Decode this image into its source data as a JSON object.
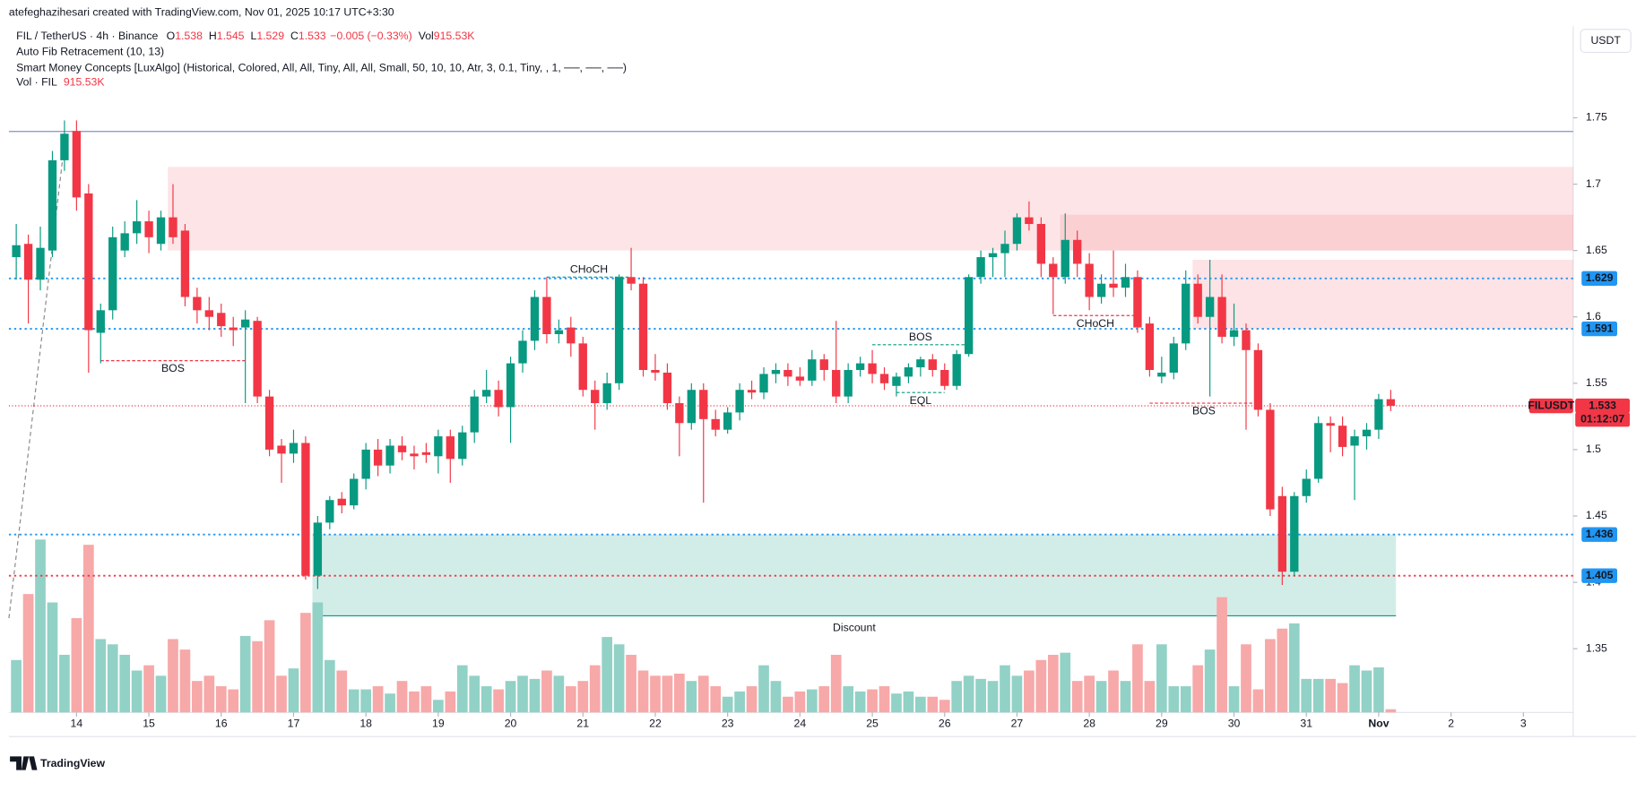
{
  "header": {
    "credit": "atefeghazihesari created with TradingView.com, Nov 01, 2025 10:17 UTC+3:30",
    "symbol": "FIL / TetherUS · 4h · Binance",
    "ohlc_labels": [
      "O",
      "H",
      "L",
      "C"
    ],
    "change": "−0.005 (−0.33%)",
    "vol_label": "Vol",
    "indicators": [
      "Auto Fib Retracement (10, 13)",
      "Smart Money Concepts [LuxAlgo] (Historical, Colored, All, All, Tiny, All, All, Small, 50, 10, 10, Atr, 3, 0.1, Tiny, , 1, ──, ──, ──)"
    ],
    "vol_pane": "Vol · FIL",
    "currency": "USDT",
    "brand": "TradingView"
  },
  "chart_data": {
    "type": "candlestick",
    "ylim": [
      1.302,
      1.819
    ],
    "yticks": [
      1.35,
      1.4,
      1.45,
      1.5,
      1.55,
      1.6,
      1.65,
      1.7,
      1.75
    ],
    "grid": false,
    "up_color": "#089981",
    "down_color": "#f23645",
    "vol_up_color": "#92d1c6",
    "vol_down_color": "#f7a8a8",
    "xticks": [
      {
        "value": 5,
        "label": "14"
      },
      {
        "value": 11,
        "label": "15"
      },
      {
        "value": 17,
        "label": "16"
      },
      {
        "value": 23,
        "label": "17"
      },
      {
        "value": 29,
        "label": "18"
      },
      {
        "value": 35,
        "label": "19"
      },
      {
        "value": 41,
        "label": "20"
      },
      {
        "value": 47,
        "label": "21"
      },
      {
        "value": 53,
        "label": "22"
      },
      {
        "value": 59,
        "label": "23"
      },
      {
        "value": 65,
        "label": "24"
      },
      {
        "value": 71,
        "label": "25"
      },
      {
        "value": 77,
        "label": "26"
      },
      {
        "value": 83,
        "label": "27"
      },
      {
        "value": 89,
        "label": "28"
      },
      {
        "value": 95,
        "label": "29"
      },
      {
        "value": 101,
        "label": "30"
      },
      {
        "value": 107,
        "label": "31"
      },
      {
        "value": 113,
        "label": "Nov"
      },
      {
        "value": 119,
        "label": "2"
      },
      {
        "value": 125,
        "label": "3"
      }
    ],
    "candles": [
      [
        1.645,
        1.67,
        1.628,
        1.654
      ],
      [
        1.655,
        1.662,
        1.595,
        1.628
      ],
      [
        1.628,
        1.668,
        1.62,
        1.652
      ],
      [
        1.65,
        1.725,
        1.645,
        1.718
      ],
      [
        1.718,
        1.748,
        1.71,
        1.738
      ],
      [
        1.74,
        1.748,
        1.68,
        1.69
      ],
      [
        1.693,
        1.7,
        1.558,
        1.59
      ],
      [
        1.588,
        1.61,
        1.565,
        1.605
      ],
      [
        1.605,
        1.668,
        1.598,
        1.66
      ],
      [
        1.65,
        1.672,
        1.645,
        1.663
      ],
      [
        1.663,
        1.688,
        1.655,
        1.672
      ],
      [
        1.672,
        1.68,
        1.648,
        1.66
      ],
      [
        1.655,
        1.68,
        1.65,
        1.675
      ],
      [
        1.675,
        1.7,
        1.655,
        1.66
      ],
      [
        1.665,
        1.67,
        1.608,
        1.615
      ],
      [
        1.615,
        1.622,
        1.595,
        1.605
      ],
      [
        1.605,
        1.615,
        1.59,
        1.6
      ],
      [
        1.603,
        1.61,
        1.585,
        1.593
      ],
      [
        1.592,
        1.6,
        1.578,
        1.59
      ],
      [
        1.592,
        1.605,
        1.535,
        1.598
      ],
      [
        1.597,
        1.6,
        1.535,
        1.54
      ],
      [
        1.54,
        1.545,
        1.495,
        1.5
      ],
      [
        1.503,
        1.508,
        1.475,
        1.497
      ],
      [
        1.497,
        1.515,
        1.49,
        1.505
      ],
      [
        1.505,
        1.51,
        1.402,
        1.405
      ],
      [
        1.405,
        1.45,
        1.395,
        1.445
      ],
      [
        1.445,
        1.465,
        1.44,
        1.462
      ],
      [
        1.463,
        1.468,
        1.452,
        1.458
      ],
      [
        1.458,
        1.482,
        1.455,
        1.478
      ],
      [
        1.478,
        1.505,
        1.47,
        1.5
      ],
      [
        1.5,
        1.508,
        1.48,
        1.488
      ],
      [
        1.488,
        1.508,
        1.482,
        1.503
      ],
      [
        1.503,
        1.51,
        1.492,
        1.498
      ],
      [
        1.497,
        1.503,
        1.485,
        1.495
      ],
      [
        1.498,
        1.505,
        1.49,
        1.496
      ],
      [
        1.495,
        1.515,
        1.482,
        1.51
      ],
      [
        1.51,
        1.515,
        1.475,
        1.493
      ],
      [
        1.493,
        1.518,
        1.488,
        1.513
      ],
      [
        1.513,
        1.545,
        1.505,
        1.54
      ],
      [
        1.54,
        1.56,
        1.535,
        1.545
      ],
      [
        1.545,
        1.552,
        1.525,
        1.532
      ],
      [
        1.532,
        1.57,
        1.505,
        1.565
      ],
      [
        1.565,
        1.59,
        1.558,
        1.582
      ],
      [
        1.582,
        1.62,
        1.575,
        1.615
      ],
      [
        1.615,
        1.63,
        1.58,
        1.587
      ],
      [
        1.587,
        1.598,
        1.58,
        1.59
      ],
      [
        1.592,
        1.6,
        1.57,
        1.58
      ],
      [
        1.58,
        1.585,
        1.54,
        1.545
      ],
      [
        1.545,
        1.552,
        1.515,
        1.535
      ],
      [
        1.535,
        1.558,
        1.53,
        1.55
      ],
      [
        1.55,
        1.632,
        1.545,
        1.63
      ],
      [
        1.63,
        1.652,
        1.62,
        1.625
      ],
      [
        1.625,
        1.63,
        1.555,
        1.56
      ],
      [
        1.56,
        1.572,
        1.552,
        1.558
      ],
      [
        1.558,
        1.565,
        1.53,
        1.535
      ],
      [
        1.535,
        1.54,
        1.495,
        1.52
      ],
      [
        1.52,
        1.55,
        1.515,
        1.545
      ],
      [
        1.545,
        1.55,
        1.46,
        1.523
      ],
      [
        1.523,
        1.53,
        1.51,
        1.515
      ],
      [
        1.515,
        1.532,
        1.512,
        1.528
      ],
      [
        1.528,
        1.55,
        1.522,
        1.545
      ],
      [
        1.545,
        1.552,
        1.538,
        1.543
      ],
      [
        1.543,
        1.562,
        1.538,
        1.557
      ],
      [
        1.557,
        1.565,
        1.55,
        1.56
      ],
      [
        1.56,
        1.565,
        1.548,
        1.555
      ],
      [
        1.555,
        1.562,
        1.548,
        1.552
      ],
      [
        1.552,
        1.575,
        1.548,
        1.568
      ],
      [
        1.568,
        1.572,
        1.552,
        1.56
      ],
      [
        1.56,
        1.597,
        1.535,
        1.54
      ],
      [
        1.54,
        1.565,
        1.535,
        1.56
      ],
      [
        1.56,
        1.57,
        1.555,
        1.565
      ],
      [
        1.565,
        1.575,
        1.55,
        1.557
      ],
      [
        1.557,
        1.562,
        1.545,
        1.55
      ],
      [
        1.548,
        1.558,
        1.54,
        1.555
      ],
      [
        1.555,
        1.565,
        1.55,
        1.562
      ],
      [
        1.562,
        1.57,
        1.555,
        1.568
      ],
      [
        1.568,
        1.572,
        1.555,
        1.56
      ],
      [
        1.56,
        1.565,
        1.545,
        1.548
      ],
      [
        1.548,
        1.575,
        1.545,
        1.572
      ],
      [
        1.572,
        1.632,
        1.57,
        1.63
      ],
      [
        1.63,
        1.65,
        1.625,
        1.645
      ],
      [
        1.645,
        1.652,
        1.63,
        1.648
      ],
      [
        1.648,
        1.665,
        1.63,
        1.655
      ],
      [
        1.655,
        1.678,
        1.65,
        1.675
      ],
      [
        1.675,
        1.687,
        1.665,
        1.67
      ],
      [
        1.67,
        1.675,
        1.63,
        1.64
      ],
      [
        1.64,
        1.645,
        1.602,
        1.63
      ],
      [
        1.63,
        1.678,
        1.625,
        1.658
      ],
      [
        1.658,
        1.665,
        1.63,
        1.64
      ],
      [
        1.64,
        1.648,
        1.605,
        1.615
      ],
      [
        1.615,
        1.632,
        1.61,
        1.625
      ],
      [
        1.625,
        1.65,
        1.615,
        1.622
      ],
      [
        1.622,
        1.64,
        1.615,
        1.63
      ],
      [
        1.63,
        1.635,
        1.588,
        1.592
      ],
      [
        1.595,
        1.6,
        1.555,
        1.56
      ],
      [
        1.555,
        1.57,
        1.55,
        1.558
      ],
      [
        1.558,
        1.585,
        1.553,
        1.58
      ],
      [
        1.58,
        1.635,
        1.575,
        1.625
      ],
      [
        1.625,
        1.632,
        1.595,
        1.6
      ],
      [
        1.6,
        1.643,
        1.54,
        1.615
      ],
      [
        1.615,
        1.632,
        1.58,
        1.585
      ],
      [
        1.585,
        1.61,
        1.578,
        1.59
      ],
      [
        1.59,
        1.595,
        1.515,
        1.575
      ],
      [
        1.575,
        1.58,
        1.525,
        1.53
      ],
      [
        1.53,
        1.535,
        1.45,
        1.455
      ],
      [
        1.465,
        1.472,
        1.398,
        1.408
      ],
      [
        1.408,
        1.468,
        1.405,
        1.465
      ],
      [
        1.465,
        1.485,
        1.46,
        1.478
      ],
      [
        1.478,
        1.525,
        1.475,
        1.52
      ],
      [
        1.52,
        1.525,
        1.498,
        1.518
      ],
      [
        1.518,
        1.525,
        1.495,
        1.502
      ],
      [
        1.503,
        1.515,
        1.462,
        1.51
      ],
      [
        1.51,
        1.52,
        1.5,
        1.515
      ],
      [
        1.515,
        1.542,
        1.508,
        1.538
      ],
      [
        1.538,
        1.545,
        1.529,
        1.533
      ]
    ],
    "volume": [
      15000000,
      33900000,
      49500000,
      31500000,
      16500000,
      27000000,
      48000000,
      21000000,
      19500000,
      16500000,
      12000000,
      13500000,
      10500000,
      21000000,
      18000000,
      9000000,
      10500000,
      7500000,
      6600000,
      21900000,
      20400000,
      26400000,
      10500000,
      12600000,
      28500000,
      31500000,
      15000000,
      12000000,
      6600000,
      6600000,
      7500000,
      5400000,
      9000000,
      6000000,
      7500000,
      3600000,
      6000000,
      13500000,
      10500000,
      7500000,
      6600000,
      9000000,
      10500000,
      9600000,
      12000000,
      10500000,
      7500000,
      9000000,
      13500000,
      21600000,
      19500000,
      16500000,
      12000000,
      10500000,
      10500000,
      11100000,
      9000000,
      10500000,
      7500000,
      4500000,
      6000000,
      7500000,
      13500000,
      9000000,
      4500000,
      6000000,
      6600000,
      7500000,
      16500000,
      7500000,
      6000000,
      6600000,
      7500000,
      5400000,
      6000000,
      4500000,
      4500000,
      3600000,
      9000000,
      10500000,
      9600000,
      9000000,
      13500000,
      10500000,
      12000000,
      15000000,
      16500000,
      17100000,
      9000000,
      10500000,
      9000000,
      12000000,
      9000000,
      19500000,
      9000000,
      19500000,
      7500000,
      7500000,
      13500000,
      18000000,
      33000000,
      7500000,
      19500000,
      6600000,
      21000000,
      24000000,
      25500000,
      9600000,
      9600000,
      9600000,
      8400000,
      13500000,
      12000000,
      12900000,
      915530
    ],
    "last_volume_label": "915.53K",
    "symbol_tag": "FILUSDT",
    "countdown": "01:12:07",
    "last_price_color": "#f23645",
    "levels": [
      {
        "price": 1.7397,
        "color": "#7f93c4",
        "style": "solid"
      },
      {
        "price": 1.629,
        "color": "#2196f3",
        "style": "dotted",
        "badge_color": "#2196f3"
      },
      {
        "price": 1.591,
        "color": "#2196f3",
        "style": "dotted",
        "badge_color": "#2196f3"
      },
      {
        "price": 1.436,
        "color": "#2196f3",
        "style": "dotted",
        "badge_color": "#2196f3"
      },
      {
        "price": 1.405,
        "color": "#f23645",
        "style": "dotted",
        "badge_color": "#2196f3"
      }
    ],
    "zones": [
      {
        "top": 1.713,
        "bottom": 1.65,
        "start": 13,
        "color": "rgba(242,54,69,0.13)"
      },
      {
        "top": 1.677,
        "bottom": 1.65,
        "start": 87,
        "color": "rgba(242,54,69,0.12)"
      },
      {
        "top": 1.643,
        "bottom": 1.591,
        "start": 98,
        "color": "rgba(242,54,69,0.14)"
      },
      {
        "top": 1.436,
        "bottom": 1.3748,
        "start": 25,
        "end": 114,
        "color": "rgba(8,153,129,0.18)",
        "label": "Discount"
      }
    ],
    "structures": [
      {
        "label": "BOS",
        "price": 1.567,
        "start": 7,
        "end": 19,
        "color": "#f23645",
        "side": "below"
      },
      {
        "label": "CHoCH",
        "price": 1.63,
        "start": 44,
        "end": 51,
        "color": "#089981",
        "side": "above"
      },
      {
        "label": "BOS",
        "price": 1.579,
        "start": 71,
        "end": 79,
        "color": "#089981",
        "side": "above"
      },
      {
        "label": "EQL",
        "price": 1.543,
        "start": 73,
        "end": 77,
        "color": "#089981",
        "side": "below"
      },
      {
        "label": "CHoCH",
        "price": 1.601,
        "start": 86,
        "end": 93,
        "color": "#f23645",
        "side": "below"
      },
      {
        "label": "BOS",
        "price": 1.535,
        "start": 94,
        "end": 103,
        "color": "#f23645",
        "side": "below"
      }
    ]
  }
}
